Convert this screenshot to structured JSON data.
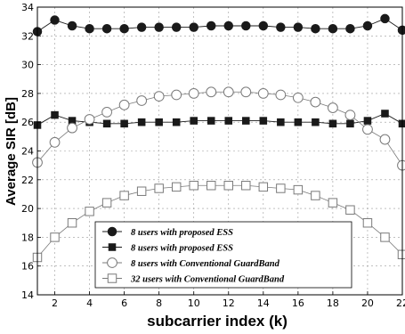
{
  "chart_data": {
    "type": "line",
    "title": "",
    "xlabel": "subcarrier index (k)",
    "ylabel": "Average SIR [dB]",
    "xlim": [
      1,
      22
    ],
    "ylim": [
      14,
      34
    ],
    "xticks": [
      2,
      4,
      6,
      8,
      10,
      12,
      14,
      16,
      18,
      20,
      22
    ],
    "yticks": [
      14,
      16,
      18,
      20,
      22,
      24,
      26,
      28,
      30,
      32,
      34
    ],
    "grid": true,
    "legend_position": "bottom-center",
    "x": [
      1,
      2,
      3,
      4,
      5,
      6,
      7,
      8,
      9,
      10,
      11,
      12,
      13,
      14,
      15,
      16,
      17,
      18,
      19,
      20,
      21,
      22
    ],
    "series": [
      {
        "name": "8 users with proposed ESS",
        "marker": "filled-circle",
        "values": [
          32.3,
          33.1,
          32.7,
          32.5,
          32.5,
          32.5,
          32.6,
          32.6,
          32.6,
          32.6,
          32.7,
          32.7,
          32.7,
          32.7,
          32.6,
          32.6,
          32.5,
          32.5,
          32.5,
          32.7,
          33.2,
          32.4
        ]
      },
      {
        "name": "8 users with proposed ESS",
        "marker": "filled-square",
        "values": [
          25.8,
          26.5,
          26.1,
          26.0,
          25.9,
          25.9,
          26.0,
          26.0,
          26.0,
          26.1,
          26.1,
          26.1,
          26.1,
          26.1,
          26.0,
          26.0,
          26.0,
          25.9,
          25.9,
          26.1,
          26.6,
          25.9
        ]
      },
      {
        "name": "8 users with Conventional GuardBand",
        "marker": "open-circle",
        "values": [
          23.2,
          24.6,
          25.6,
          26.2,
          26.7,
          27.2,
          27.5,
          27.8,
          27.9,
          28.0,
          28.1,
          28.1,
          28.1,
          28.0,
          27.9,
          27.7,
          27.4,
          27.0,
          26.5,
          25.5,
          24.8,
          23.0
        ]
      },
      {
        "name": "32 users with Conventional GuardBand",
        "marker": "open-square",
        "values": [
          16.6,
          18.0,
          19.0,
          19.8,
          20.4,
          20.9,
          21.2,
          21.4,
          21.5,
          21.6,
          21.6,
          21.6,
          21.6,
          21.5,
          21.4,
          21.3,
          20.9,
          20.4,
          19.9,
          19.0,
          18.0,
          16.8
        ]
      }
    ],
    "colors": {
      "markers": "#1a1a1a",
      "open_markers": "#7a7a7a",
      "grid": "#9a9a9a"
    }
  }
}
